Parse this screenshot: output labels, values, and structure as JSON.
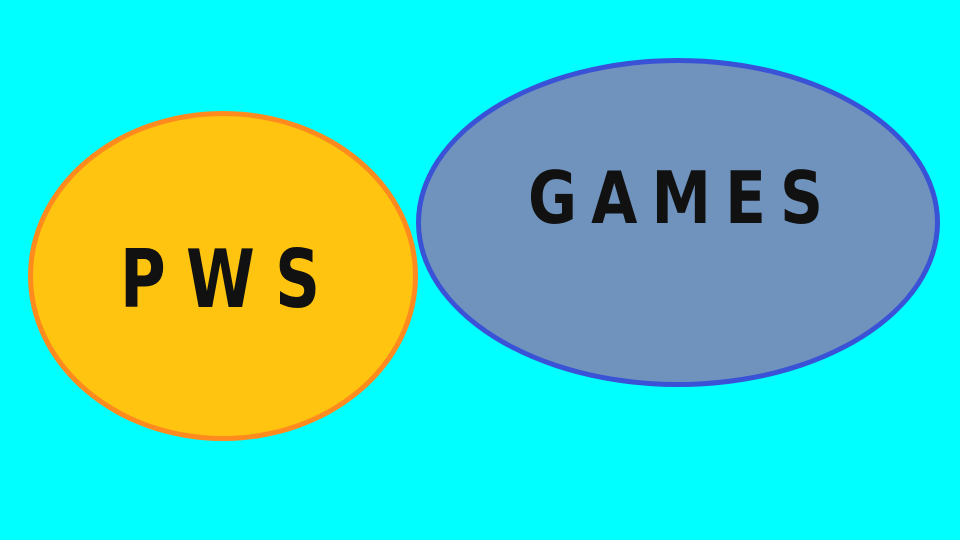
{
  "background_color": "#00ffff",
  "shapes": {
    "pws": {
      "label": "PWS",
      "fill_color": "#ffc410",
      "stroke_color": "#ff8a1e"
    },
    "games": {
      "label": "GAMES",
      "fill_color": "#6f93bd",
      "stroke_color": "#3a52d6"
    }
  }
}
